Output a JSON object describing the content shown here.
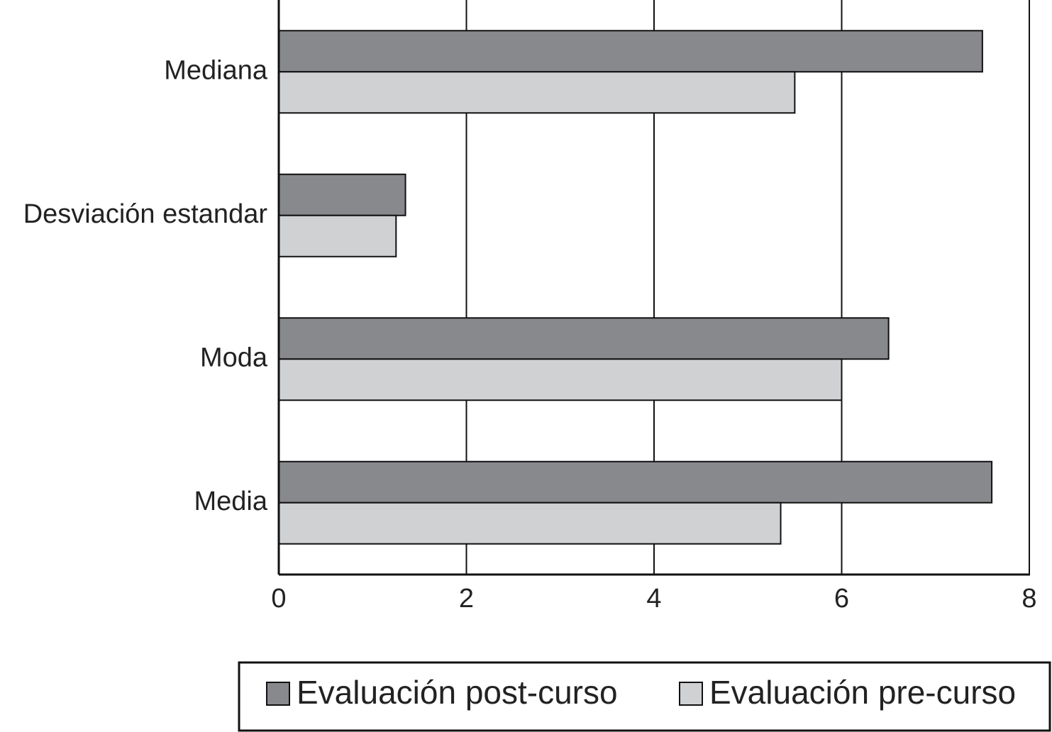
{
  "chart_data": {
    "type": "hbar",
    "categories": [
      "Mediana",
      "Desviación estandar",
      "Moda",
      "Media"
    ],
    "series": [
      {
        "name": "Evaluación post-curso",
        "color": "#88898d",
        "values": [
          7.5,
          1.35,
          6.5,
          7.6
        ]
      },
      {
        "name": "Evaluación pre-curso",
        "color": "#d0d1d3",
        "values": [
          5.5,
          1.25,
          6.0,
          5.35
        ]
      }
    ],
    "xlim": [
      0,
      8
    ],
    "xticks": [
      0,
      2,
      4,
      6,
      8
    ],
    "grid": true,
    "legend": "bottom"
  }
}
